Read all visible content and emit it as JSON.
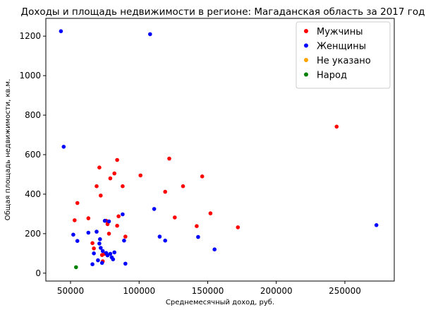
{
  "chart_data": {
    "type": "scatter",
    "title": "Доходы и площадь недвижимости в регионе: Магаданская область за 2017 год",
    "xlabel": "Среднемесячный доход, руб.",
    "ylabel": "Общая площадь недвижимости, кв.м.",
    "xlim": [
      32000,
      286000
    ],
    "ylim": [
      -40,
      1290
    ],
    "xticks": [
      50000,
      100000,
      150000,
      200000,
      250000
    ],
    "yticks": [
      0,
      200,
      400,
      600,
      800,
      1000,
      1200
    ],
    "grid": false,
    "legend_position": "top-right",
    "series": [
      {
        "name": "Мужчины",
        "color": "#ff0000",
        "points": [
          [
            53000,
            268
          ],
          [
            55000,
            355
          ],
          [
            63000,
            278
          ],
          [
            66000,
            152
          ],
          [
            67000,
            125
          ],
          [
            69000,
            440
          ],
          [
            71000,
            535
          ],
          [
            72000,
            393
          ],
          [
            73000,
            92
          ],
          [
            73500,
            60
          ],
          [
            75000,
            98
          ],
          [
            76000,
            265
          ],
          [
            77000,
            248
          ],
          [
            78000,
            200
          ],
          [
            79000,
            480
          ],
          [
            82000,
            505
          ],
          [
            84000,
            573
          ],
          [
            85000,
            288
          ],
          [
            84000,
            240
          ],
          [
            88000,
            440
          ],
          [
            90000,
            185
          ],
          [
            101000,
            495
          ],
          [
            119000,
            412
          ],
          [
            122000,
            580
          ],
          [
            126000,
            282
          ],
          [
            132000,
            440
          ],
          [
            142000,
            238
          ],
          [
            146000,
            490
          ],
          [
            152000,
            303
          ],
          [
            172000,
            232
          ],
          [
            244000,
            742
          ]
        ]
      },
      {
        "name": "Женщины",
        "color": "#0000ff",
        "points": [
          [
            43000,
            1225
          ],
          [
            45000,
            640
          ],
          [
            108000,
            1210
          ],
          [
            52000,
            195
          ],
          [
            55000,
            163
          ],
          [
            63000,
            205
          ],
          [
            66000,
            45
          ],
          [
            67000,
            100
          ],
          [
            69000,
            210
          ],
          [
            70000,
            65
          ],
          [
            71000,
            150
          ],
          [
            71500,
            172
          ],
          [
            72000,
            128
          ],
          [
            73000,
            52
          ],
          [
            73500,
            112
          ],
          [
            75000,
            265
          ],
          [
            76000,
            102
          ],
          [
            77000,
            90
          ],
          [
            78000,
            262
          ],
          [
            79000,
            98
          ],
          [
            80000,
            80
          ],
          [
            81000,
            70
          ],
          [
            82000,
            105
          ],
          [
            88000,
            298
          ],
          [
            89000,
            165
          ],
          [
            90000,
            48
          ],
          [
            111000,
            325
          ],
          [
            115000,
            185
          ],
          [
            119000,
            165
          ],
          [
            143000,
            183
          ],
          [
            155000,
            120
          ],
          [
            273000,
            243
          ]
        ]
      },
      {
        "name": "Не указано",
        "color": "#ffa500",
        "points": []
      },
      {
        "name": "Народ",
        "color": "#008000",
        "points": [
          [
            54000,
            30
          ]
        ]
      }
    ]
  }
}
